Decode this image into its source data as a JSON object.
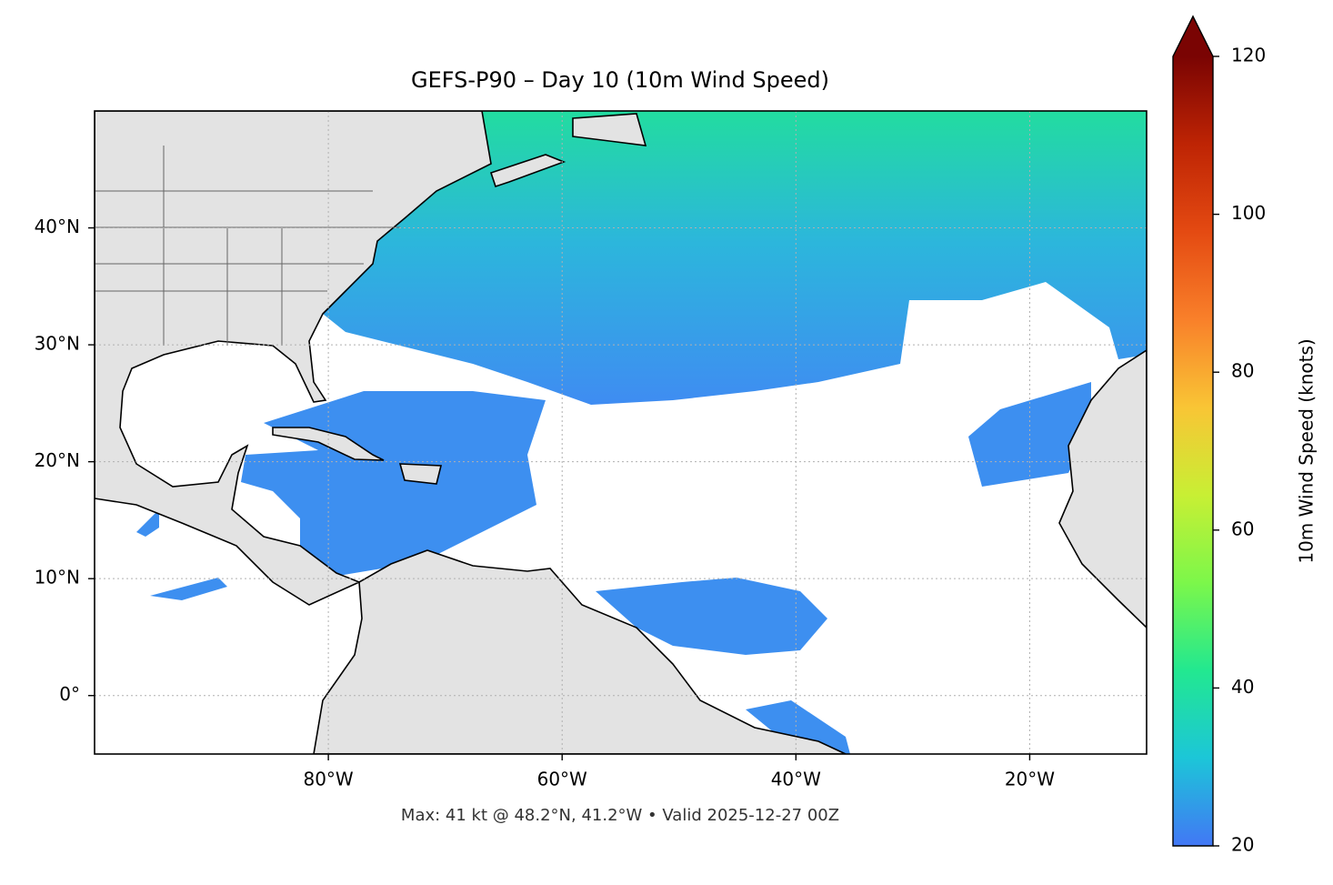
{
  "map": {
    "title": "GEFS-P90 – Day 10 (10m Wind Speed)",
    "note": "Max: 41 kt @ 48.2°N, 41.2°W • Valid 2025-12-27 00Z",
    "lonlim": [
      -100,
      -10
    ],
    "latlim": [
      -5,
      50
    ],
    "lonticks": [
      {
        "value": -80,
        "label": "80°W"
      },
      {
        "value": -60,
        "label": "60°W"
      },
      {
        "value": -40,
        "label": "40°W"
      },
      {
        "value": -20,
        "label": "20°W"
      }
    ],
    "latticks": [
      {
        "value": 0,
        "label": "0°"
      },
      {
        "value": 10,
        "label": "10°N"
      },
      {
        "value": 20,
        "label": "20°N"
      },
      {
        "value": 30,
        "label": "30°N"
      },
      {
        "value": 40,
        "label": "40°N"
      }
    ],
    "grid": true
  },
  "colorbar": {
    "label": "10m Wind Speed (knots)",
    "lim": [
      20,
      120
    ],
    "ticks": [
      20,
      40,
      60,
      80,
      100,
      120
    ],
    "extend": "max",
    "colors": [
      "#4277f5",
      "#1cc6d8",
      "#22e890",
      "#7cf74a",
      "#c8ef34",
      "#f9c535",
      "#f9802a",
      "#e44a12",
      "#be2404",
      "#7a0403"
    ]
  }
}
